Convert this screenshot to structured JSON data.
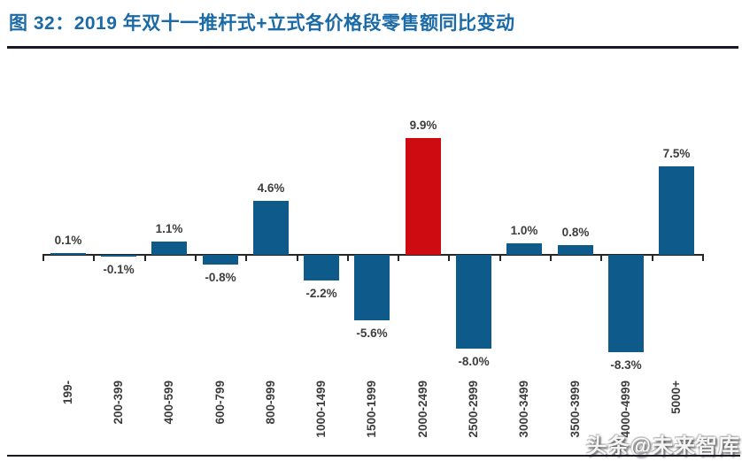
{
  "header": {
    "title": "图 32：2019 年双十一推杆式+立式各价格段零售额同比变动"
  },
  "watermark": {
    "text": "头条@未来智库"
  },
  "colors": {
    "title_blue": "#1B6AA8",
    "divider_dark": "#1A1A26",
    "axis_dark": "#262626",
    "bar_default": "#0E5A8B",
    "bar_highlight": "#CE0B10",
    "label_dark": "#3D3D3D"
  },
  "chart_data": {
    "type": "bar",
    "title": "2019 年双十一推杆式+立式各价格段零售额同比变动",
    "categories": [
      "199-",
      "200-399",
      "400-599",
      "600-799",
      "800-999",
      "1000-1499",
      "1500-1999",
      "2000-2499",
      "2500-2999",
      "3000-3499",
      "3500-3999",
      "4000-4999",
      "5000+"
    ],
    "values": [
      0.1,
      -0.1,
      1.1,
      -0.8,
      4.6,
      -2.2,
      -5.6,
      9.9,
      -8.0,
      1.0,
      0.8,
      -8.3,
      7.5
    ],
    "value_labels": [
      "0.1%",
      "-0.1%",
      "1.1%",
      "-0.8%",
      "4.6%",
      "-2.2%",
      "-5.6%",
      "9.9%",
      "-8.0%",
      "1.0%",
      "0.8%",
      "-8.3%",
      "7.5%"
    ],
    "highlight_index": 7,
    "xlabel": "",
    "ylabel": "",
    "grid": false,
    "legend": "none",
    "value_label_position": "outside-end"
  }
}
